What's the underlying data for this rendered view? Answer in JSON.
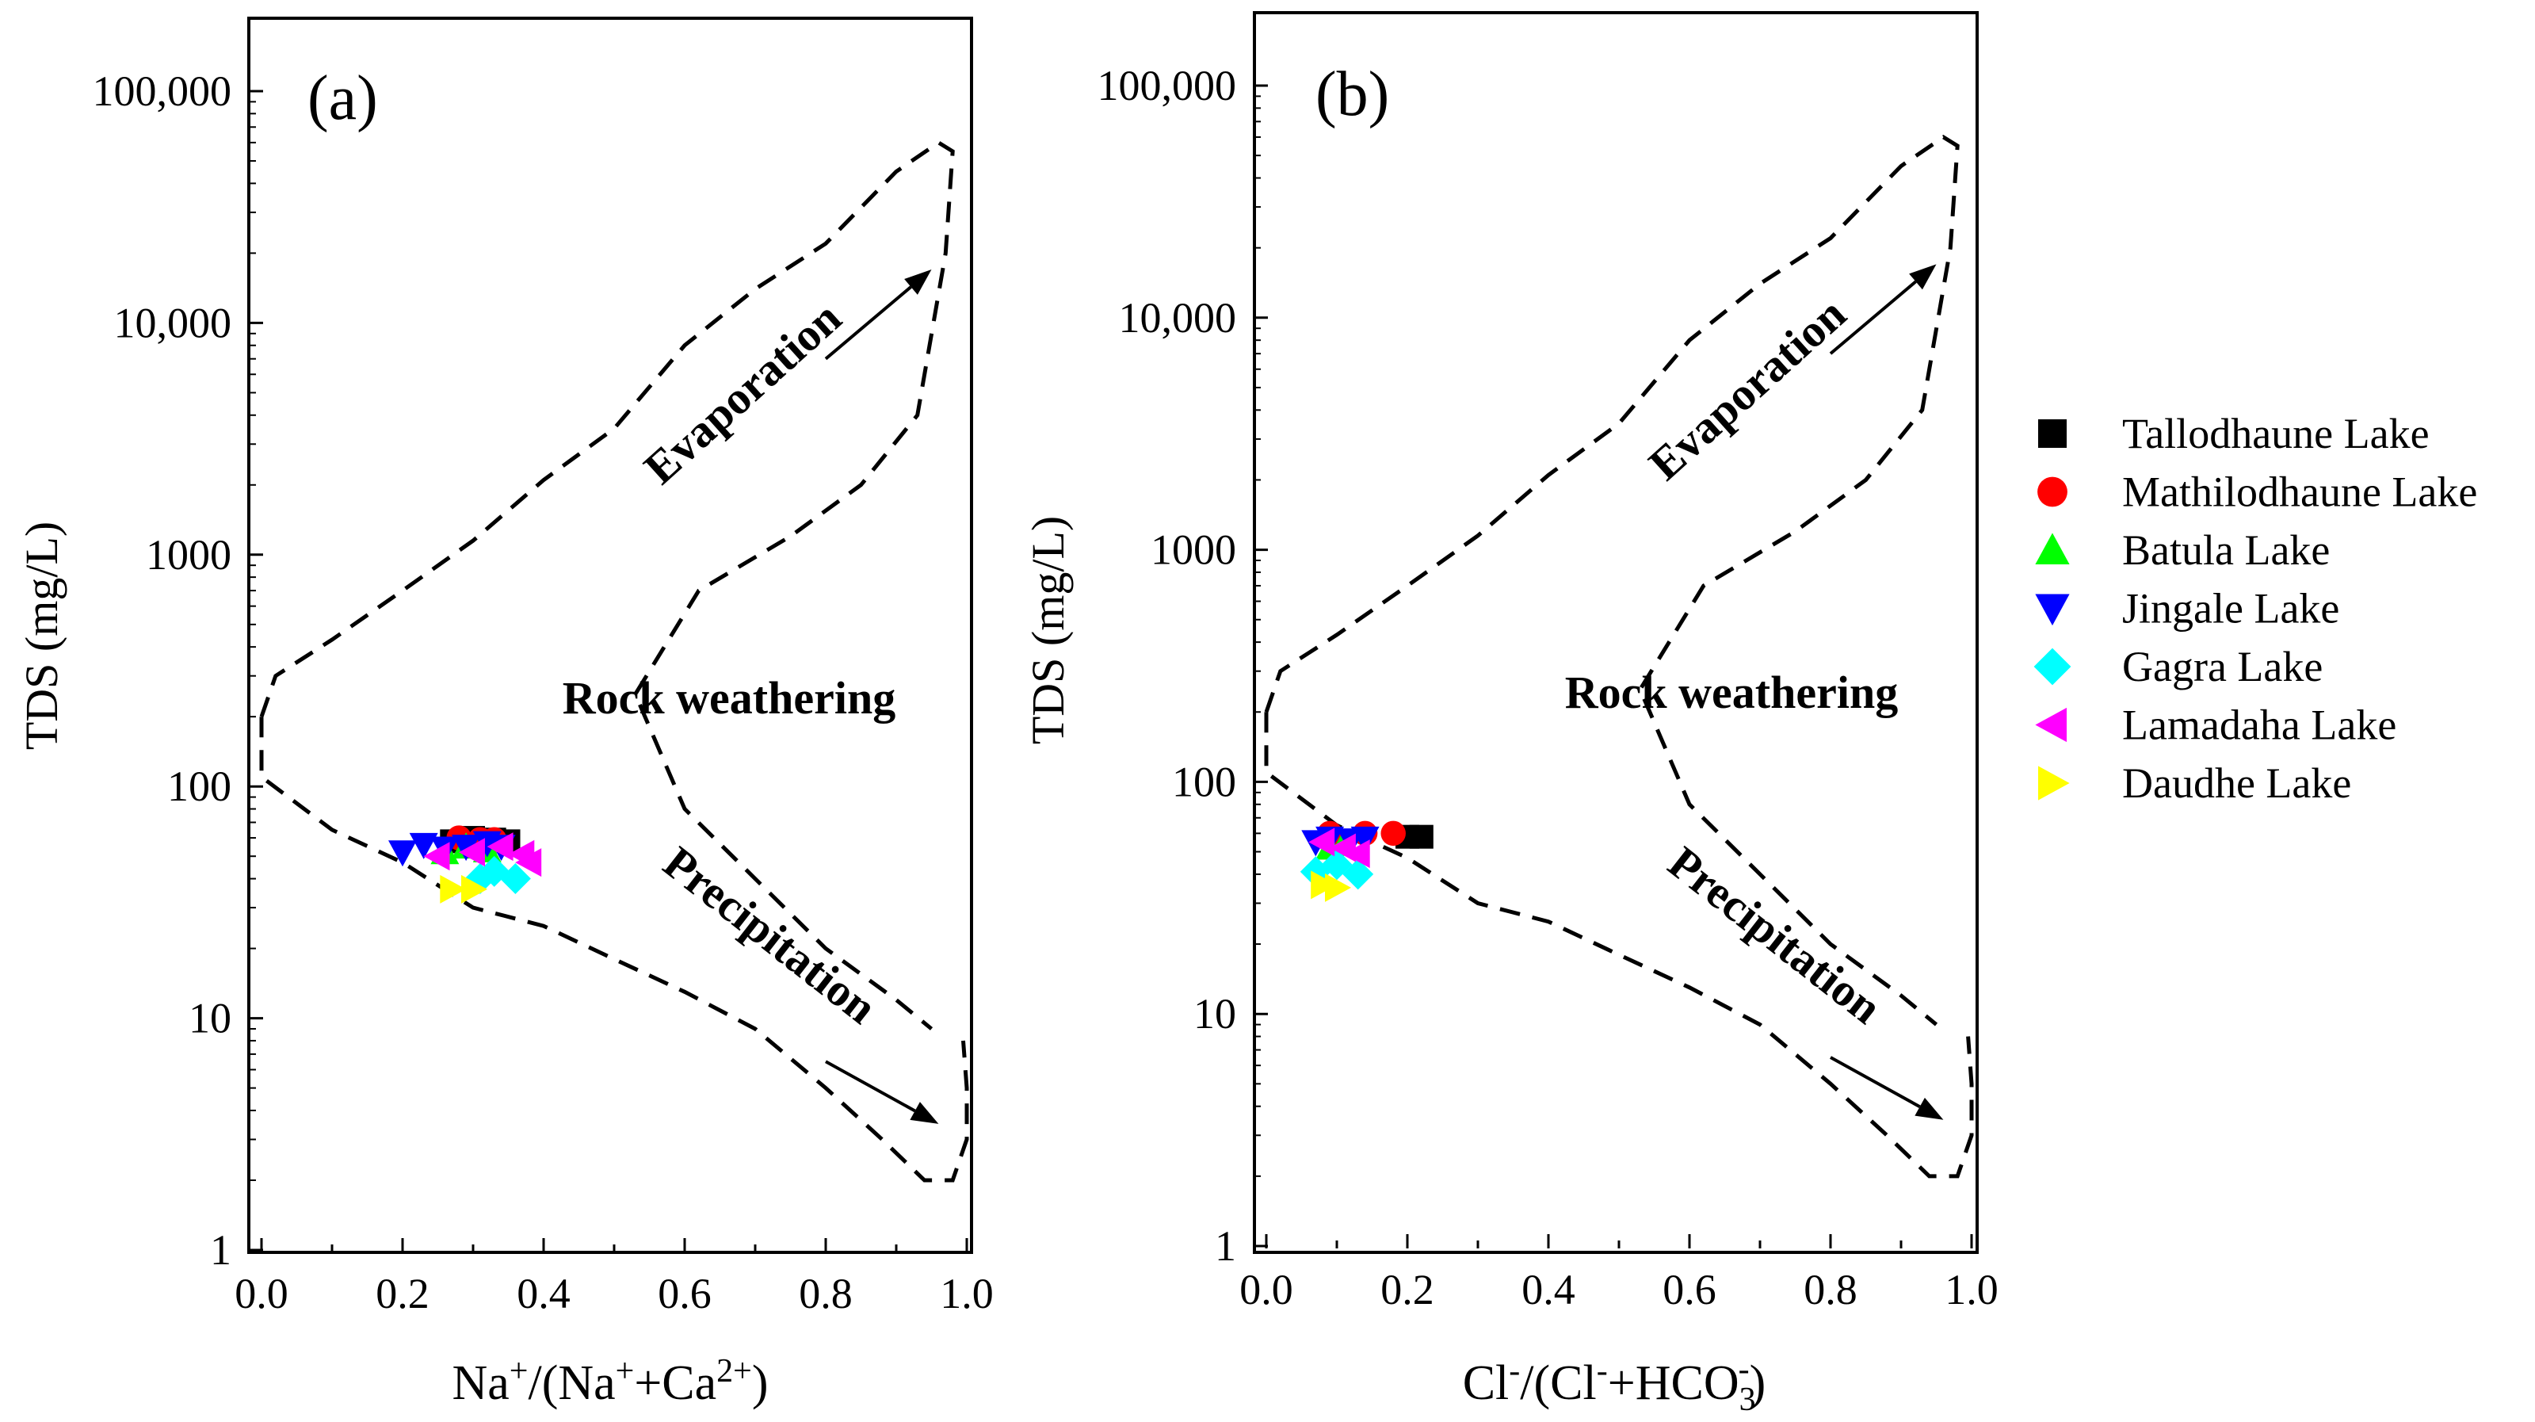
{
  "chart_data": [
    {
      "type": "scatter",
      "panel_label": "(a)",
      "xlabel": "Na⁺/(Na⁺+Ca²⁺)",
      "ylabel": "TDS (mg/L)",
      "xlim": [
        0.0,
        1.0
      ],
      "ylim": [
        1,
        100000
      ],
      "y_scale": "log",
      "x_ticks": [
        "0.0",
        "0.2",
        "0.4",
        "0.6",
        "0.8",
        "1.0"
      ],
      "y_ticks": [
        "1",
        "10",
        "100",
        "1000",
        "10,000",
        "100,000"
      ],
      "annotations": [
        "Evaporation",
        "Rock weathering",
        "Precipitation"
      ],
      "series": [
        {
          "name": "Tallodhaune Lake",
          "x": [
            0.27,
            0.3,
            0.33,
            0.35
          ],
          "y": [
            58,
            60,
            59,
            58
          ]
        },
        {
          "name": "Mathilodhaune Lake",
          "x": [
            0.28,
            0.31,
            0.33
          ],
          "y": [
            60,
            59,
            59
          ]
        },
        {
          "name": "Batula Lake",
          "x": [
            0.26,
            0.29,
            0.32
          ],
          "y": [
            52,
            55,
            53
          ]
        },
        {
          "name": "Jingale Lake",
          "x": [
            0.2,
            0.23,
            0.26,
            0.29,
            0.32,
            0.34
          ],
          "y": [
            52,
            56,
            54,
            55,
            57,
            55
          ]
        },
        {
          "name": "Gagra Lake",
          "x": [
            0.31,
            0.33,
            0.36
          ],
          "y": [
            40,
            43,
            40
          ]
        },
        {
          "name": "Lamadaha Lake",
          "x": [
            0.25,
            0.3,
            0.34,
            0.37,
            0.38
          ],
          "y": [
            50,
            52,
            55,
            51,
            47
          ]
        },
        {
          "name": "Daudhe Lake",
          "x": [
            0.27,
            0.3
          ],
          "y": [
            36,
            36
          ]
        }
      ]
    },
    {
      "type": "scatter",
      "panel_label": "(b)",
      "xlabel": "Cl⁻/(Cl⁻+HCO₃⁻)",
      "ylabel": "TDS (mg/L)",
      "xlim": [
        0.0,
        1.0
      ],
      "ylim": [
        1,
        100000
      ],
      "y_scale": "log",
      "x_ticks": [
        "0.0",
        "0.2",
        "0.4",
        "0.6",
        "0.8",
        "1.0"
      ],
      "y_ticks": [
        "1",
        "10",
        "100",
        "1000",
        "10,000",
        "100,000"
      ],
      "annotations": [
        "Evaporation",
        "Rock weathering",
        "Precipitation"
      ],
      "series": [
        {
          "name": "Tallodhaune Lake",
          "x": [
            0.2,
            0.22
          ],
          "y": [
            58,
            58
          ]
        },
        {
          "name": "Mathilodhaune Lake",
          "x": [
            0.09,
            0.14,
            0.18
          ],
          "y": [
            60,
            60,
            60
          ]
        },
        {
          "name": "Batula Lake",
          "x": [
            0.09,
            0.11
          ],
          "y": [
            52,
            54
          ]
        },
        {
          "name": "Jingale Lake",
          "x": [
            0.07,
            0.09,
            0.12,
            0.14
          ],
          "y": [
            55,
            57,
            56,
            57
          ]
        },
        {
          "name": "Gagra Lake",
          "x": [
            0.07,
            0.1,
            0.13
          ],
          "y": [
            41,
            44,
            40
          ]
        },
        {
          "name": "Lamadaha Lake",
          "x": [
            0.08,
            0.11,
            0.13
          ],
          "y": [
            55,
            52,
            49
          ]
        },
        {
          "name": "Daudhe Lake",
          "x": [
            0.08,
            0.1
          ],
          "y": [
            36,
            35
          ]
        }
      ]
    }
  ],
  "legend": {
    "placement": "right",
    "items": [
      {
        "label": "Tallodhaune Lake",
        "color": "#000000",
        "marker": "square"
      },
      {
        "label": "Mathilodhaune Lake",
        "color": "#ff0000",
        "marker": "circle"
      },
      {
        "label": "Batula Lake",
        "color": "#00ff00",
        "marker": "triangle-up"
      },
      {
        "label": "Jingale Lake",
        "color": "#0000ff",
        "marker": "triangle-down"
      },
      {
        "label": "Gagra Lake",
        "color": "#00ffff",
        "marker": "diamond"
      },
      {
        "label": "Lamadaha Lake",
        "color": "#ff00ff",
        "marker": "triangle-left"
      },
      {
        "label": "Daudhe Lake",
        "color": "#ffff00",
        "marker": "triangle-right"
      }
    ]
  },
  "gibbs_boundary": {
    "upper": [
      [
        0.0,
        200
      ],
      [
        0.02,
        300
      ],
      [
        0.1,
        430
      ],
      [
        0.2,
        700
      ],
      [
        0.3,
        1150
      ],
      [
        0.4,
        2100
      ],
      [
        0.5,
        3500
      ],
      [
        0.6,
        8000
      ],
      [
        0.7,
        14000
      ],
      [
        0.8,
        22000
      ],
      [
        0.9,
        45000
      ],
      [
        0.96,
        60000
      ],
      [
        0.98,
        55000
      ],
      [
        0.97,
        20000
      ],
      [
        0.93,
        4000
      ],
      [
        0.85,
        2000
      ],
      [
        0.75,
        1200
      ],
      [
        0.62,
        700
      ],
      [
        0.53,
        250
      ],
      [
        0.6,
        80
      ],
      [
        0.7,
        40
      ],
      [
        0.8,
        20
      ],
      [
        0.9,
        12
      ],
      [
        0.95,
        9
      ]
    ],
    "lower": [
      [
        0.0,
        200
      ],
      [
        0.0,
        110
      ],
      [
        0.1,
        65
      ],
      [
        0.2,
        47
      ],
      [
        0.3,
        30
      ],
      [
        0.4,
        25
      ],
      [
        0.5,
        18
      ],
      [
        0.6,
        13
      ],
      [
        0.7,
        9
      ],
      [
        0.8,
        5
      ],
      [
        0.88,
        3
      ],
      [
        0.94,
        2
      ],
      [
        0.98,
        2
      ],
      [
        1.0,
        3
      ],
      [
        1.0,
        5
      ],
      [
        0.995,
        8
      ]
    ],
    "arrow_evaporation": [
      [
        0.8,
        7000
      ],
      [
        0.95,
        17000
      ]
    ],
    "arrow_precipitation": [
      [
        0.8,
        6.5
      ],
      [
        0.96,
        3.5
      ]
    ]
  }
}
